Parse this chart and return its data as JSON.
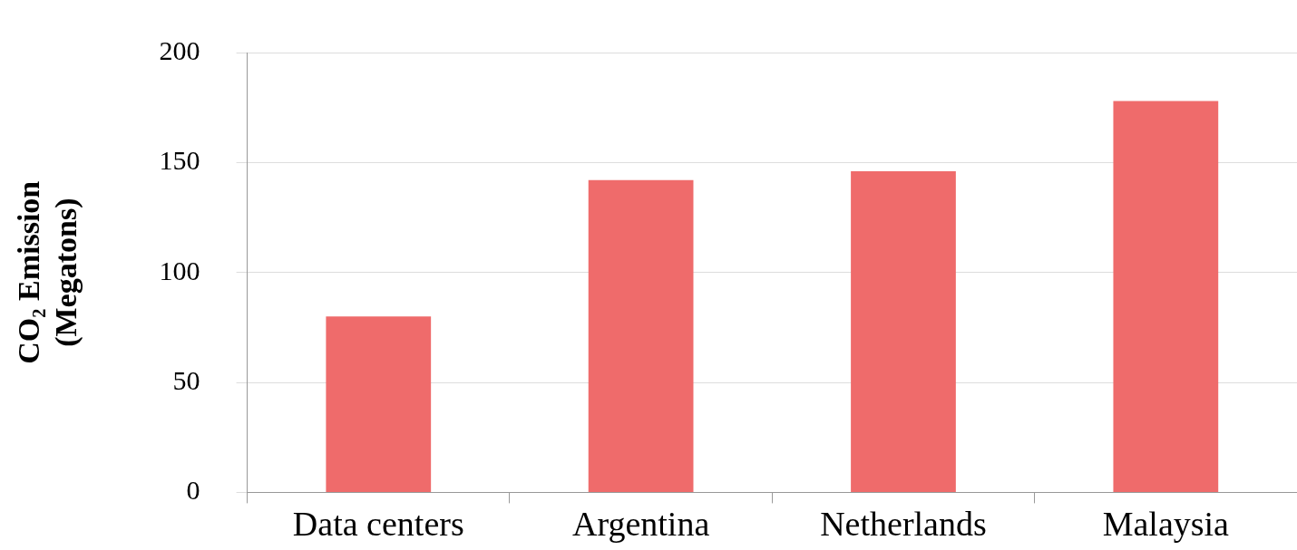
{
  "chart_data": {
    "type": "bar",
    "ylabel": "CO₂ Emission\n(Megatons)",
    "categories": [
      "Data centers",
      "Argentina",
      "Netherlands",
      "Malaysia"
    ],
    "values": [
      80,
      142,
      146,
      178
    ],
    "color": "#ef6b6b",
    "ylim": [
      0,
      200
    ],
    "yticks": [
      0,
      50,
      100,
      150,
      200
    ],
    "grid": "y",
    "legend": false
  }
}
